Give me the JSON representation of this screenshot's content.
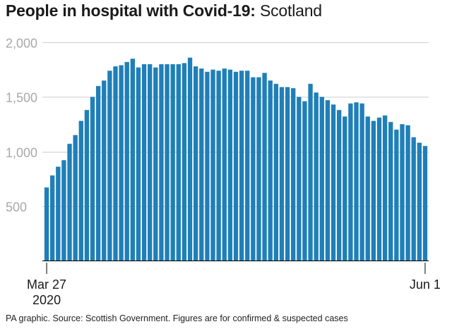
{
  "title": {
    "bold": "People in hospital with Covid-19:",
    "light": "Scotland"
  },
  "source": "PA graphic. Source: Scottish Government. Figures are for confirmed & suspected cases",
  "colors": {
    "bar": "#1f7fb8",
    "grid": "#cfcfcf",
    "axis_text": "#a8a8a8"
  },
  "chart_data": {
    "type": "bar",
    "title": "People in hospital with Covid-19: Scotland",
    "xlabel": "",
    "ylabel": "",
    "ylim": [
      0,
      2000
    ],
    "yticks": [
      {
        "value": 500,
        "label": "500"
      },
      {
        "value": 1000,
        "label": "1,000"
      },
      {
        "value": 1500,
        "label": "1,500"
      },
      {
        "value": 2000,
        "label": "2,000"
      }
    ],
    "x_range": [
      "2020-03-27",
      "2020-06-01"
    ],
    "x_tick_labels": [
      {
        "date": "2020-03-27",
        "label": "Mar 27",
        "sublabel": "2020"
      },
      {
        "date": "2020-06-01",
        "label": "Jun 1",
        "sublabel": ""
      }
    ],
    "grid": true,
    "categories": [
      "2020-03-27",
      "2020-03-28",
      "2020-03-29",
      "2020-03-30",
      "2020-03-31",
      "2020-04-01",
      "2020-04-02",
      "2020-04-03",
      "2020-04-04",
      "2020-04-05",
      "2020-04-06",
      "2020-04-07",
      "2020-04-08",
      "2020-04-09",
      "2020-04-10",
      "2020-04-11",
      "2020-04-12",
      "2020-04-13",
      "2020-04-14",
      "2020-04-15",
      "2020-04-16",
      "2020-04-17",
      "2020-04-18",
      "2020-04-19",
      "2020-04-20",
      "2020-04-21",
      "2020-04-22",
      "2020-04-23",
      "2020-04-24",
      "2020-04-25",
      "2020-04-26",
      "2020-04-27",
      "2020-04-28",
      "2020-04-29",
      "2020-04-30",
      "2020-05-01",
      "2020-05-02",
      "2020-05-03",
      "2020-05-04",
      "2020-05-05",
      "2020-05-06",
      "2020-05-07",
      "2020-05-08",
      "2020-05-09",
      "2020-05-10",
      "2020-05-11",
      "2020-05-12",
      "2020-05-13",
      "2020-05-14",
      "2020-05-15",
      "2020-05-16",
      "2020-05-17",
      "2020-05-18",
      "2020-05-19",
      "2020-05-20",
      "2020-05-21",
      "2020-05-22",
      "2020-05-23",
      "2020-05-24",
      "2020-05-25",
      "2020-05-26",
      "2020-05-27",
      "2020-05-28",
      "2020-05-29",
      "2020-05-30",
      "2020-05-31",
      "2020-06-01"
    ],
    "values": [
      670,
      780,
      860,
      920,
      1070,
      1150,
      1280,
      1380,
      1500,
      1600,
      1650,
      1740,
      1780,
      1790,
      1820,
      1850,
      1770,
      1800,
      1800,
      1770,
      1800,
      1800,
      1800,
      1800,
      1810,
      1860,
      1780,
      1760,
      1730,
      1750,
      1740,
      1760,
      1750,
      1730,
      1740,
      1740,
      1680,
      1680,
      1720,
      1650,
      1620,
      1590,
      1590,
      1580,
      1500,
      1460,
      1620,
      1540,
      1500,
      1470,
      1430,
      1380,
      1320,
      1440,
      1450,
      1440,
      1320,
      1280,
      1310,
      1330,
      1270,
      1200,
      1250,
      1240,
      1130,
      1080,
      1050
    ]
  }
}
